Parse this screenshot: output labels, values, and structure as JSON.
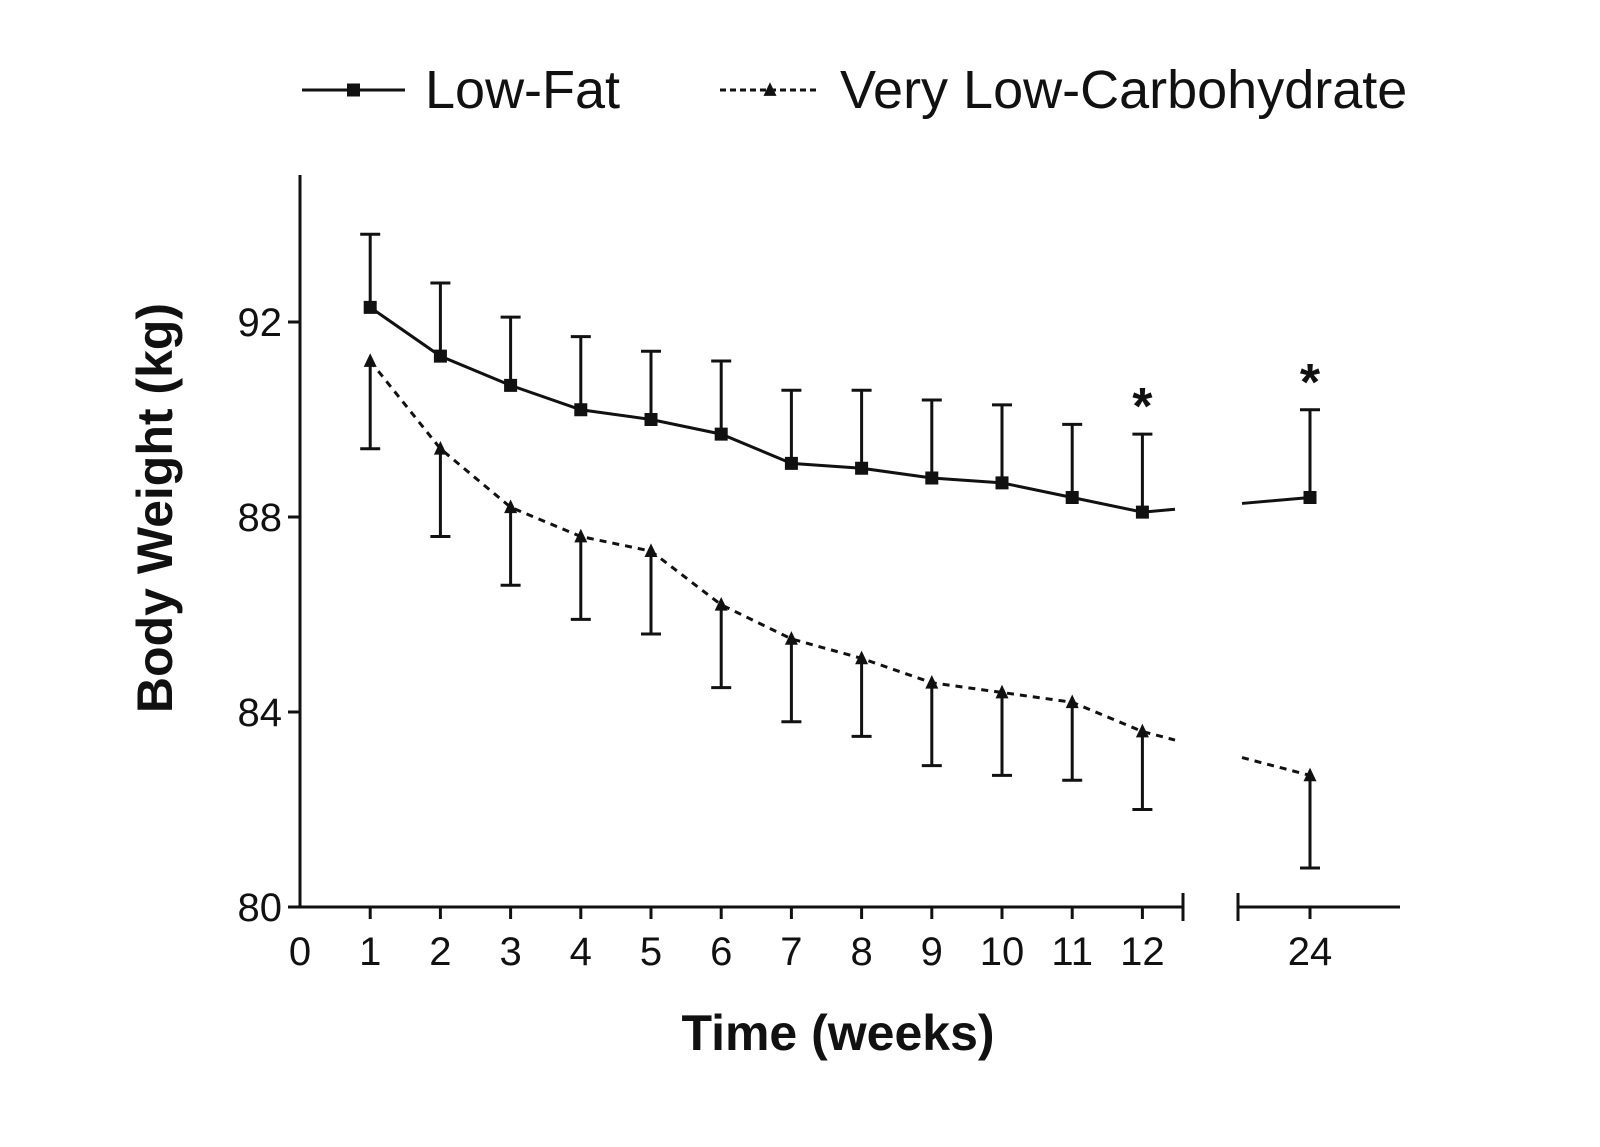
{
  "chart_data": {
    "type": "line",
    "title": "",
    "xlabel": "Time (weeks)",
    "ylabel": "Body Weight (kg)",
    "ylim": [
      80,
      94
    ],
    "yticks": [
      "80",
      "84",
      "88",
      "92"
    ],
    "x": [
      "1",
      "2",
      "3",
      "4",
      "5",
      "6",
      "7",
      "8",
      "9",
      "10",
      "11",
      "12",
      "24"
    ],
    "xticks": [
      "0",
      "1",
      "2",
      "3",
      "4",
      "5",
      "6",
      "7",
      "8",
      "9",
      "10",
      "11",
      "12",
      "24"
    ],
    "axis_break": "between 12 and 24",
    "legend_position": "top",
    "grid": false,
    "series": [
      {
        "name": "Low-Fat",
        "marker": "square",
        "line_style": "solid",
        "color": "#111111",
        "values": [
          92.3,
          91.3,
          90.7,
          90.2,
          90.0,
          89.7,
          89.1,
          89.0,
          88.8,
          88.7,
          88.4,
          88.1,
          88.4
        ],
        "error_upper": [
          93.8,
          92.8,
          92.1,
          91.7,
          91.4,
          91.2,
          90.6,
          90.6,
          90.4,
          90.3,
          89.9,
          89.7,
          90.2
        ]
      },
      {
        "name": "Very Low-Carbohydrate",
        "marker": "triangle",
        "line_style": "dashed",
        "color": "#111111",
        "values": [
          91.2,
          89.4,
          88.2,
          87.6,
          87.3,
          86.2,
          85.5,
          85.1,
          84.6,
          84.4,
          84.2,
          83.6,
          82.7
        ],
        "error_lower": [
          89.4,
          87.6,
          86.6,
          85.9,
          85.6,
          84.5,
          83.8,
          83.5,
          82.9,
          82.7,
          82.6,
          82.0,
          80.8
        ]
      }
    ],
    "annotations": [
      {
        "text": "*",
        "x": "12"
      },
      {
        "text": "*",
        "x": "24"
      }
    ]
  }
}
